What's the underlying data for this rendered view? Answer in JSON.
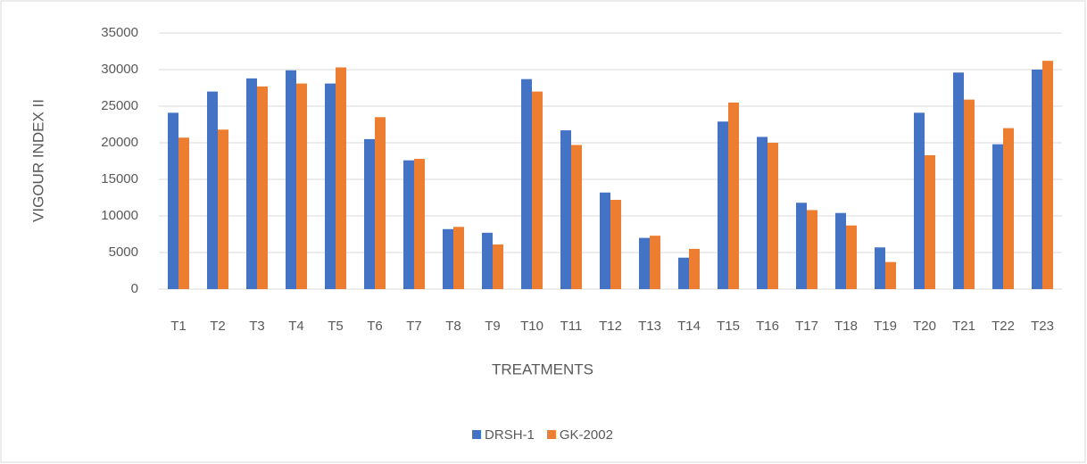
{
  "chart_data": {
    "type": "bar",
    "xlabel": "TREATMENTS",
    "ylabel": "VIGOUR INDEX II",
    "categories": [
      "T1",
      "T2",
      "T3",
      "T4",
      "T5",
      "T6",
      "T7",
      "T8",
      "T9",
      "T10",
      "T11",
      "T12",
      "T13",
      "T14",
      "T15",
      "T16",
      "T17",
      "T18",
      "T19",
      "T20",
      "T21",
      "T22",
      "T23"
    ],
    "series": [
      {
        "name": "DRSH-1",
        "color": "#4472c4",
        "values": [
          24100,
          27000,
          28800,
          29900,
          28100,
          20500,
          17600,
          8200,
          7700,
          28700,
          21700,
          13200,
          7000,
          4300,
          22900,
          20800,
          11800,
          10400,
          5700,
          24100,
          29600,
          19800,
          30000
        ]
      },
      {
        "name": "GK-2002",
        "color": "#ed7d31",
        "values": [
          20700,
          21800,
          27700,
          28100,
          30300,
          23500,
          17800,
          8500,
          6100,
          27000,
          19700,
          12200,
          7300,
          5500,
          25500,
          20000,
          10800,
          8700,
          3700,
          18300,
          25900,
          22000,
          31200
        ]
      }
    ],
    "ylim": [
      0,
      35000
    ],
    "yticks": [
      0,
      5000,
      10000,
      15000,
      20000,
      25000,
      30000,
      35000
    ],
    "grid": true,
    "legend": "bottom"
  }
}
